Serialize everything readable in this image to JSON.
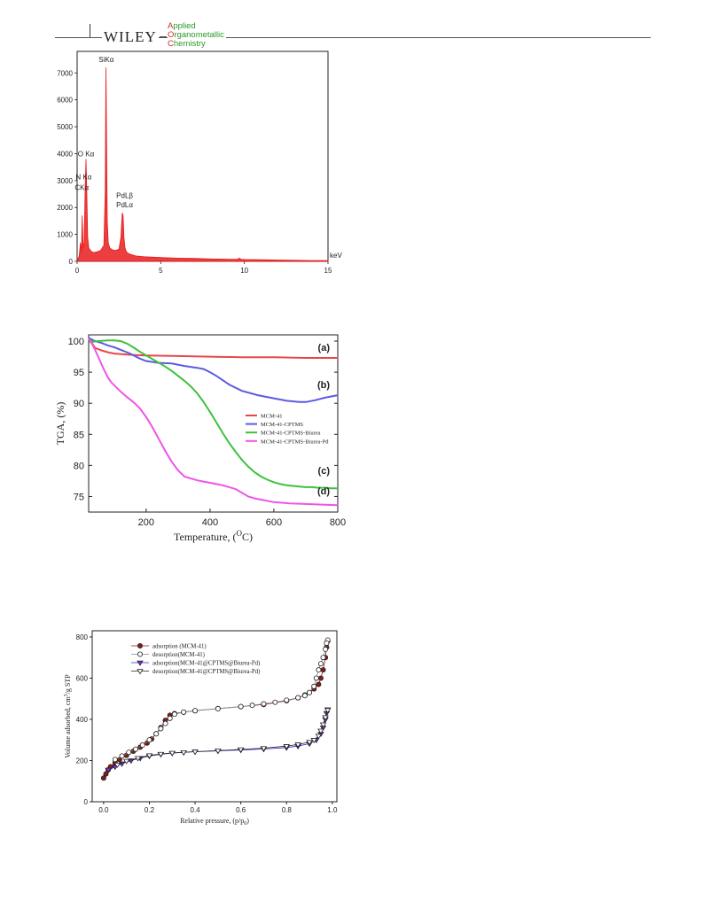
{
  "header": {
    "brand": "WILEY",
    "journal_lines": [
      {
        "lead": "A",
        "rest": "pplied"
      },
      {
        "lead": "O",
        "rest": "rganometallic"
      },
      {
        "lead": "C",
        "rest": "hemistry"
      }
    ],
    "colors": {
      "journal_lead": "#d42a1e",
      "journal_rest": "#2a9a2a"
    }
  },
  "chart_data": [
    {
      "type": "line",
      "title": "",
      "xlabel": "",
      "xunit": "keV",
      "ylabel": "",
      "xlim": [
        0,
        15
      ],
      "ylim": [
        0,
        7800
      ],
      "xticks": [
        0,
        5,
        10,
        15
      ],
      "yticks": [
        0,
        1000,
        2000,
        3000,
        4000,
        5000,
        6000,
        7000
      ],
      "color": "#e81c1c",
      "series": [
        {
          "x": [
            0.0,
            0.12,
            0.2,
            0.26,
            0.3,
            0.36,
            0.42,
            0.48,
            0.53,
            0.58,
            0.63,
            0.7,
            0.8,
            0.9,
            1.0,
            1.2,
            1.4,
            1.6,
            1.68,
            1.72,
            1.74,
            1.76,
            1.8,
            1.86,
            1.95,
            2.1,
            2.3,
            2.5,
            2.62,
            2.7,
            2.75,
            2.8,
            2.86,
            2.95,
            3.1,
            3.5,
            4.0,
            5.0,
            6.0,
            7.0,
            8.0,
            9.0,
            9.6,
            9.7,
            9.8,
            10.0,
            11.0,
            12.0,
            13.0,
            14.0,
            15.0
          ],
          "y": [
            0,
            200,
            700,
            300,
            1700,
            500,
            700,
            2800,
            3800,
            2600,
            900,
            500,
            400,
            350,
            330,
            360,
            400,
            600,
            2600,
            7200,
            6200,
            4500,
            1500,
            700,
            500,
            430,
            400,
            450,
            900,
            1800,
            1700,
            900,
            500,
            350,
            280,
            200,
            170,
            140,
            120,
            110,
            90,
            80,
            80,
            120,
            80,
            70,
            60,
            50,
            40,
            30,
            30
          ]
        }
      ],
      "annotations": [
        {
          "text": "SiKα",
          "x": 1.74,
          "y": 7400
        },
        {
          "text": "O Kα",
          "x": 0.53,
          "y": 3900
        },
        {
          "text": "N Kα",
          "x": 0.39,
          "y": 3050
        },
        {
          "text": "CKα",
          "x": 0.28,
          "y": 2650
        },
        {
          "text": "PdLβ",
          "x": 2.84,
          "y": 2350
        },
        {
          "text": "PdLα",
          "x": 2.84,
          "y": 2000
        }
      ]
    },
    {
      "type": "line",
      "title": "",
      "xlabel": "Temperature, (",
      "xlabel_sup": "O",
      "xlabel_tail": "C)",
      "ylabel": "TGA, (%)",
      "xlim": [
        20,
        800
      ],
      "ylim": [
        72.5,
        101
      ],
      "xticks": [
        200,
        400,
        600,
        800
      ],
      "yticks": [
        75,
        80,
        85,
        90,
        95,
        100
      ],
      "legend_position": "right",
      "series": [
        {
          "name": "MCM-41",
          "label": "(a)",
          "color": "#e8474a",
          "x": [
            20,
            40,
            60,
            80,
            100,
            150,
            200,
            300,
            400,
            500,
            600,
            700,
            800
          ],
          "y": [
            100.5,
            98.9,
            98.5,
            98.2,
            98.0,
            97.8,
            97.7,
            97.6,
            97.5,
            97.4,
            97.4,
            97.3,
            97.3
          ]
        },
        {
          "name": "MCM-41-CPTMS",
          "label": "(b)",
          "color": "#5a5ce0",
          "x": [
            20,
            40,
            60,
            80,
            100,
            120,
            150,
            180,
            200,
            240,
            280,
            320,
            360,
            380,
            400,
            420,
            440,
            460,
            500,
            550,
            600,
            640,
            680,
            700,
            730,
            760,
            800
          ],
          "y": [
            100.5,
            100.0,
            99.7,
            99.3,
            99.0,
            98.6,
            98.0,
            97.2,
            96.8,
            96.5,
            96.4,
            96.0,
            95.7,
            95.5,
            95.0,
            94.4,
            93.7,
            93.0,
            92.0,
            91.3,
            90.8,
            90.4,
            90.2,
            90.2,
            90.5,
            90.9,
            91.3
          ]
        },
        {
          "name": "MCM-41-CPTMS-Biurea",
          "label": "(c)",
          "color": "#3cc23c",
          "x": [
            20,
            50,
            80,
            100,
            120,
            140,
            160,
            180,
            200,
            220,
            240,
            260,
            280,
            300,
            320,
            340,
            360,
            380,
            400,
            420,
            440,
            460,
            480,
            500,
            520,
            540,
            560,
            580,
            600,
            620,
            640,
            660,
            680,
            700,
            720,
            740,
            760,
            780,
            800
          ],
          "y": [
            99.8,
            100.0,
            100.1,
            100.1,
            100.0,
            99.6,
            99.0,
            98.3,
            97.7,
            97.1,
            96.5,
            95.9,
            95.2,
            94.4,
            93.6,
            92.7,
            91.6,
            90.2,
            88.6,
            86.9,
            85.2,
            83.6,
            82.2,
            80.9,
            79.8,
            78.9,
            78.2,
            77.7,
            77.3,
            77.0,
            76.8,
            76.7,
            76.6,
            76.5,
            76.5,
            76.4,
            76.4,
            76.3,
            76.3
          ]
        },
        {
          "name": "MCM-41-CPTMS-Biurea-Pd",
          "label": "(d)",
          "color": "#ee55e8",
          "x": [
            20,
            30,
            40,
            50,
            60,
            70,
            80,
            90,
            100,
            120,
            140,
            160,
            180,
            200,
            220,
            240,
            260,
            280,
            300,
            320,
            340,
            360,
            380,
            400,
            420,
            440,
            460,
            480,
            500,
            520,
            540,
            560,
            600,
            650,
            700,
            750,
            800
          ],
          "y": [
            100.4,
            99.6,
            98.6,
            97.5,
            96.3,
            95.2,
            94.2,
            93.4,
            92.9,
            91.9,
            91.0,
            90.2,
            89.2,
            87.8,
            86.1,
            84.2,
            82.3,
            80.6,
            79.2,
            78.2,
            77.9,
            77.6,
            77.4,
            77.2,
            77.0,
            76.8,
            76.5,
            76.2,
            75.6,
            75.0,
            74.7,
            74.5,
            74.1,
            73.9,
            73.8,
            73.7,
            73.6
          ]
        }
      ]
    },
    {
      "type": "scatter",
      "title": "",
      "xlabel": "Relative pressure, (p/p",
      "xlabel_sub": "0",
      "xlabel_tail": ")",
      "ylabel": "Volume adsorbed, cm",
      "ylabel_sup": "3",
      "ylabel_tail": "/g STP",
      "xlim": [
        -0.05,
        1.02
      ],
      "ylim": [
        0,
        830
      ],
      "xticks": [
        0.0,
        0.2,
        0.4,
        0.6,
        0.8,
        1.0
      ],
      "xtick_labels": [
        "0.0",
        "0.2",
        "0.4",
        "0.6",
        "0.8",
        "1.0"
      ],
      "yticks": [
        0,
        200,
        400,
        600,
        800
      ],
      "legend_position": "top-left",
      "series": [
        {
          "name": "adsorption (MCM-41)",
          "marker": "filled-circle",
          "color": "#8b1a1a",
          "x": [
            0.0,
            0.01,
            0.02,
            0.03,
            0.05,
            0.07,
            0.1,
            0.13,
            0.16,
            0.19,
            0.21,
            0.23,
            0.25,
            0.27,
            0.29,
            0.31,
            0.35,
            0.4,
            0.5,
            0.6,
            0.7,
            0.8,
            0.85,
            0.88,
            0.9,
            0.92,
            0.94,
            0.95,
            0.96,
            0.97,
            0.975,
            0.98
          ],
          "y": [
            115,
            135,
            155,
            170,
            190,
            205,
            225,
            245,
            265,
            285,
            305,
            330,
            360,
            395,
            420,
            428,
            435,
            442,
            452,
            462,
            472,
            490,
            505,
            518,
            530,
            548,
            570,
            600,
            640,
            700,
            750,
            780
          ]
        },
        {
          "name": "desorption(MCM-41)",
          "marker": "open-circle",
          "color": "#ffffff",
          "x": [
            0.98,
            0.975,
            0.97,
            0.96,
            0.95,
            0.94,
            0.93,
            0.92,
            0.9,
            0.88,
            0.85,
            0.8,
            0.75,
            0.7,
            0.65,
            0.6,
            0.5,
            0.4,
            0.35,
            0.31,
            0.29,
            0.27,
            0.25,
            0.23,
            0.2,
            0.17,
            0.14,
            0.11,
            0.08,
            0.05
          ],
          "y": [
            785,
            770,
            740,
            700,
            670,
            640,
            600,
            560,
            530,
            515,
            505,
            493,
            483,
            475,
            468,
            462,
            452,
            442,
            435,
            425,
            405,
            380,
            355,
            330,
            300,
            275,
            255,
            240,
            222,
            205
          ]
        },
        {
          "name": "adsorption(MCM-41@CPTMS@Biurea-Pd)",
          "marker": "filled-triangle-down",
          "color": "#8a2be2",
          "x": [
            0.02,
            0.05,
            0.08,
            0.12,
            0.16,
            0.2,
            0.25,
            0.3,
            0.35,
            0.4,
            0.5,
            0.6,
            0.7,
            0.8,
            0.85,
            0.9,
            0.93,
            0.95,
            0.96,
            0.97,
            0.975,
            0.98
          ],
          "y": [
            155,
            170,
            185,
            200,
            212,
            222,
            230,
            236,
            240,
            243,
            247,
            251,
            256,
            263,
            270,
            282,
            300,
            330,
            360,
            400,
            430,
            448
          ]
        },
        {
          "name": "desorption(MCM-41@CPTMS@Biurea-Pd)",
          "marker": "open-triangle-down",
          "color": "#ffffff",
          "x": [
            0.98,
            0.97,
            0.96,
            0.95,
            0.94,
            0.92,
            0.9,
            0.85,
            0.8,
            0.7,
            0.6,
            0.5,
            0.4,
            0.35,
            0.3,
            0.25,
            0.2,
            0.15,
            0.1,
            0.06
          ],
          "y": [
            445,
            410,
            375,
            345,
            320,
            300,
            290,
            278,
            270,
            260,
            254,
            248,
            243,
            240,
            237,
            232,
            225,
            212,
            198,
            180
          ]
        }
      ]
    }
  ]
}
